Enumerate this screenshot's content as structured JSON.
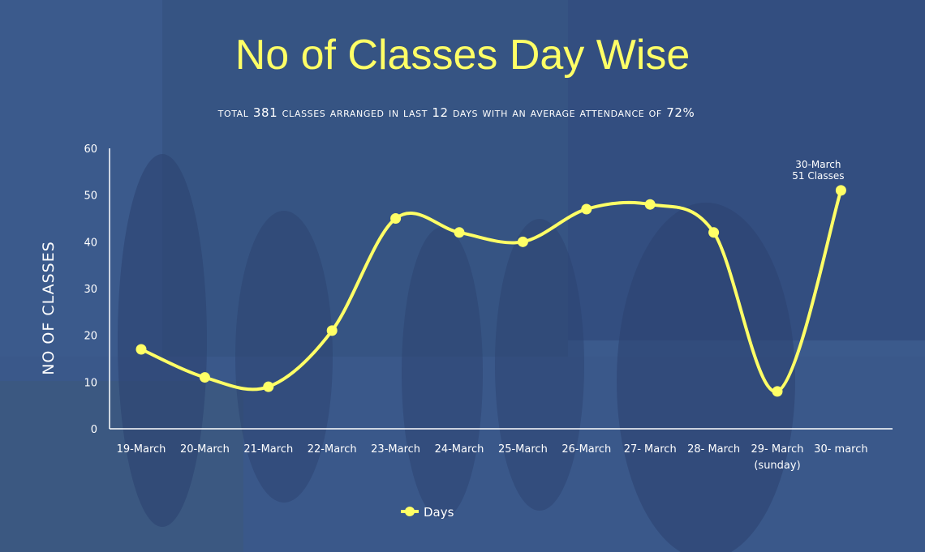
{
  "title": "No of Classes Day Wise",
  "subtitle": "Total 381 classes arranged in last 12 days with an average attendance of 72%",
  "colors": {
    "line": "#ffff66",
    "background": "#3b5a8c",
    "axis": "#ffffff"
  },
  "chart_data": {
    "type": "line",
    "title": "No of Classes Day Wise",
    "ylabel": "NO OF CLASSES",
    "xlabel": "",
    "ylim": [
      0,
      60
    ],
    "yticks": [
      0,
      10,
      20,
      30,
      40,
      50,
      60
    ],
    "grid": false,
    "legend": "bottom",
    "categories": [
      "19-March",
      "20-March",
      "21-March",
      "22-March",
      "23-March",
      "24-March",
      "25-March",
      "26-March",
      "27- March",
      "28- March",
      "29- March (sunday)",
      "30- march"
    ],
    "series": [
      {
        "name": "Days",
        "values": [
          17,
          11,
          9,
          21,
          45,
          42,
          40,
          47,
          48,
          42,
          8,
          51
        ]
      }
    ],
    "annotations": [
      {
        "category": "30- march",
        "lines": [
          "30-March",
          "51 Classes"
        ]
      }
    ]
  }
}
